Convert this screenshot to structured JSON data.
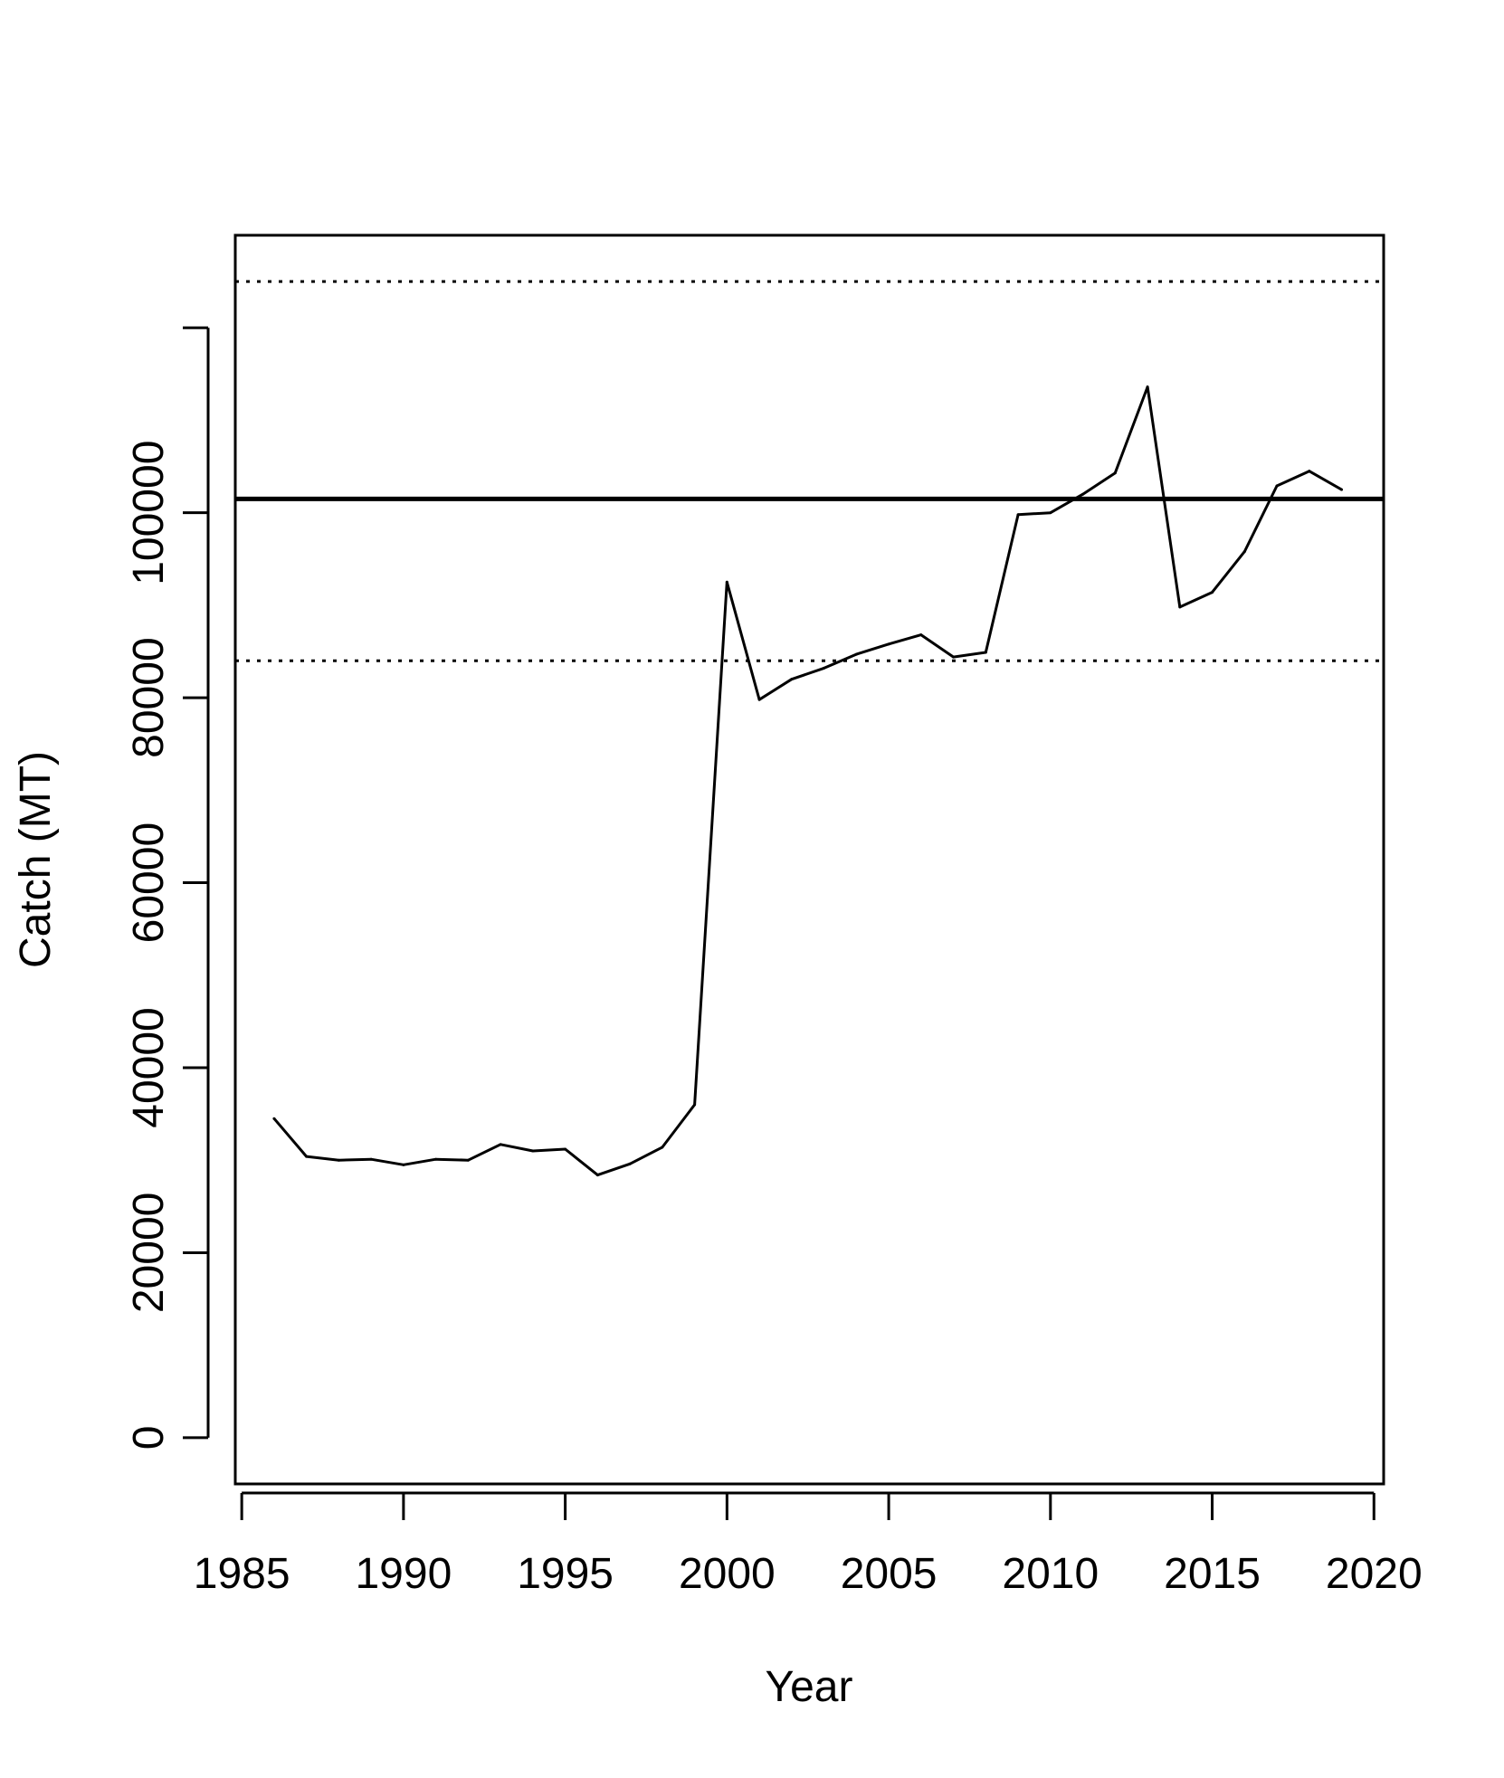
{
  "chart_data": {
    "type": "line",
    "title": "",
    "xlabel": "Year",
    "ylabel": "Catch (MT)",
    "xlim": [
      1984.8,
      2020.3
    ],
    "ylim": [
      -5000,
      130000
    ],
    "xticks": [
      1985,
      1990,
      1995,
      2000,
      2005,
      2010,
      2015,
      2020
    ],
    "yticks": [
      0,
      20000,
      40000,
      60000,
      80000,
      100000,
      120000
    ],
    "ytick_labels": [
      "0",
      "20000",
      "40000",
      "60000",
      "80000",
      "100000",
      ""
    ],
    "grid": false,
    "legend": "none",
    "series": [
      {
        "style": "solid",
        "x": [
          1986,
          1987,
          1988,
          1989,
          1990,
          1991,
          1992,
          1993,
          1994,
          1995,
          1996,
          1997,
          1998,
          1999,
          2000,
          2001,
          2002,
          2003,
          2004,
          2005,
          2006,
          2007,
          2008,
          2009,
          2010,
          2011,
          2012,
          2013,
          2014,
          2015,
          2016,
          2017,
          2018,
          2019
        ],
        "y": [
          34500,
          30400,
          30000,
          30100,
          29500,
          30100,
          30000,
          31700,
          31000,
          31200,
          28400,
          29600,
          31400,
          36000,
          92500,
          79800,
          82000,
          83200,
          84700,
          85800,
          86800,
          84400,
          84900,
          99800,
          100000,
          102000,
          104300,
          113600,
          89800,
          91400,
          95800,
          102900,
          104500,
          102500
        ]
      }
    ],
    "reference_lines": [
      {
        "y": 101500,
        "style": "solid",
        "width": "thick"
      },
      {
        "y": 125000,
        "style": "dotted"
      },
      {
        "y": 84000,
        "style": "dotted"
      }
    ],
    "colors": {
      "line": "#000000",
      "background": "#ffffff"
    }
  }
}
